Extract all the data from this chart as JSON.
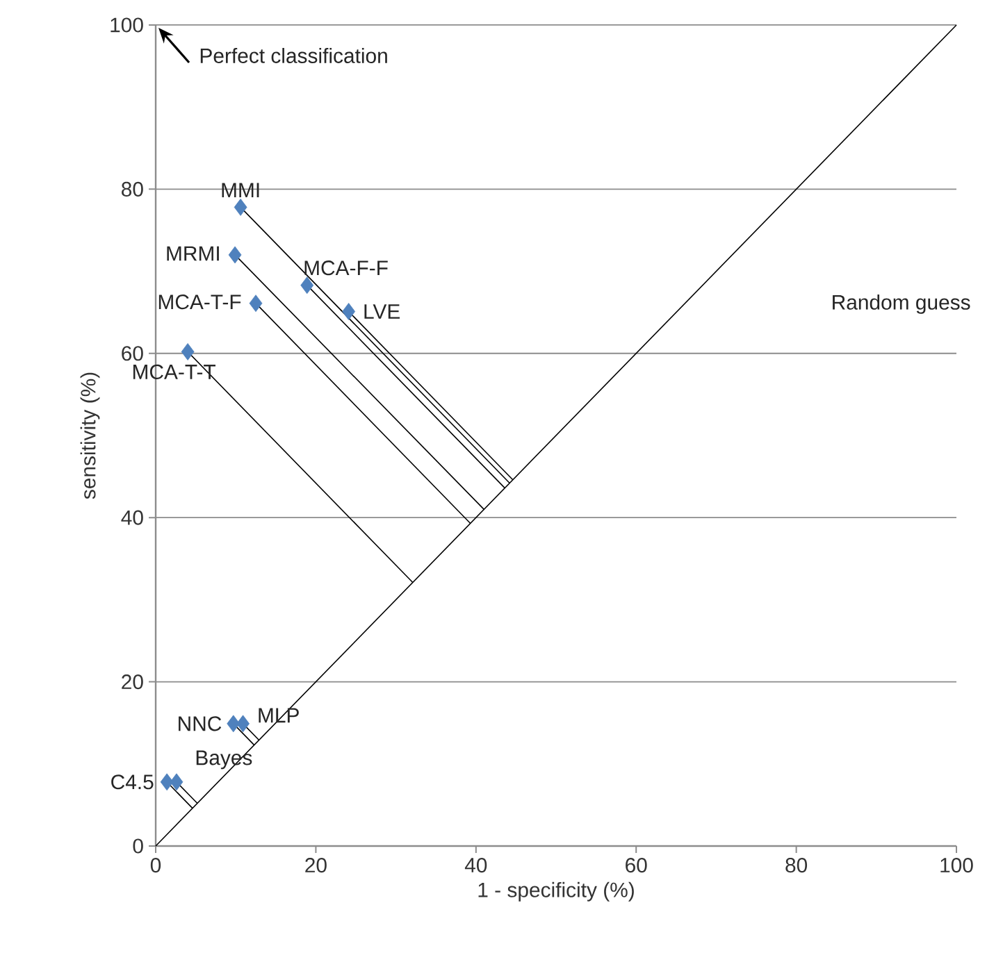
{
  "chart_data": {
    "type": "scatter",
    "xlabel": "1 - specificity (%)",
    "ylabel": "sensitivity (%)",
    "xlim": [
      0,
      100
    ],
    "ylim": [
      0,
      100
    ],
    "xticks": [
      0,
      20,
      40,
      60,
      80,
      100
    ],
    "yticks": [
      0,
      20,
      40,
      60,
      80,
      100
    ],
    "grid": "y",
    "marker": "diamond",
    "series": [
      {
        "color": "#4f81bd",
        "x": [
          10.6,
          9.9,
          18.9,
          24.1,
          12.5,
          4.0,
          9.7,
          10.9,
          1.4,
          2.6
        ],
        "values": [
          77.8,
          72.0,
          68.3,
          65.1,
          66.1,
          60.2,
          14.9,
          14.9,
          7.8,
          7.8
        ]
      },
      {
        "type": "line",
        "color": "#000000",
        "marker": "none",
        "x": [
          0,
          100
        ],
        "values": [
          0,
          100
        ]
      },
      {
        "type": "line",
        "color": "#000000",
        "marker": "none",
        "x": [
          10.6,
          44.2
        ],
        "values": [
          77.8,
          44.2
        ]
      },
      {
        "type": "line",
        "color": "#000000",
        "marker": "none",
        "x": [
          9.9,
          41.0
        ],
        "values": [
          72.0,
          41.0
        ]
      },
      {
        "type": "line",
        "color": "#000000",
        "marker": "none",
        "x": [
          18.9,
          43.6
        ],
        "values": [
          68.3,
          43.6
        ]
      },
      {
        "type": "line",
        "color": "#000000",
        "marker": "none",
        "x": [
          24.1,
          44.6
        ],
        "values": [
          65.1,
          44.6
        ]
      },
      {
        "type": "line",
        "color": "#000000",
        "marker": "none",
        "x": [
          12.5,
          39.3
        ],
        "values": [
          66.1,
          39.3
        ]
      },
      {
        "type": "line",
        "color": "#000000",
        "marker": "none",
        "x": [
          4.0,
          32.1
        ],
        "values": [
          60.2,
          32.1
        ]
      },
      {
        "type": "line",
        "color": "#000000",
        "marker": "none",
        "x": [
          9.7,
          12.3
        ],
        "values": [
          14.9,
          12.3
        ]
      },
      {
        "type": "line",
        "color": "#000000",
        "marker": "none",
        "x": [
          10.9,
          12.9
        ],
        "values": [
          14.9,
          12.9
        ]
      },
      {
        "type": "line",
        "color": "#000000",
        "marker": "none",
        "x": [
          1.4,
          4.6
        ],
        "values": [
          7.8,
          4.6
        ]
      },
      {
        "type": "line",
        "color": "#000000",
        "marker": "none",
        "x": [
          2.6,
          5.2
        ],
        "values": [
          7.8,
          5.2
        ]
      }
    ],
    "annotations": [
      {
        "text": "MMI",
        "x": 10.6,
        "y": 77.8
      },
      {
        "text": "MRMI",
        "x": 9.9,
        "y": 72.0
      },
      {
        "text": "MCA-F-F",
        "x": 18.9,
        "y": 68.3
      },
      {
        "text": "LVE",
        "x": 24.1,
        "y": 65.1
      },
      {
        "text": "MCA-T-F",
        "x": 12.5,
        "y": 66.1
      },
      {
        "text": "MCA-T-T",
        "x": 4.0,
        "y": 60.2
      },
      {
        "text": "NNC",
        "x": 9.7,
        "y": 14.9
      },
      {
        "text": "MLP",
        "x": 10.9,
        "y": 14.9
      },
      {
        "text": "C4.5",
        "x": 1.4,
        "y": 7.8
      },
      {
        "text": "Bayes",
        "x": 2.6,
        "y": 7.8
      },
      "Perfect classification",
      "Random guess"
    ]
  }
}
